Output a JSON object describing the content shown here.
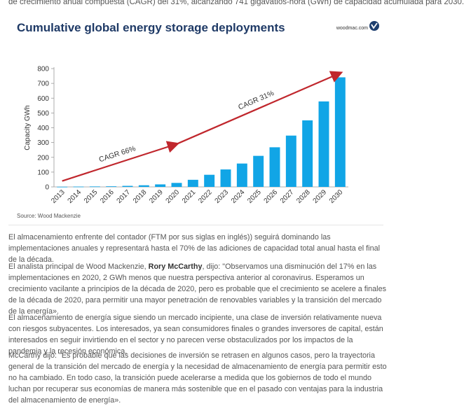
{
  "article": {
    "top_clip": "de crecimiento anual compuesta (CAGR) del 31%, alcanzando 741 gigavatios-hora (GWh) de capacidad acumulada para 2030.",
    "p1": "El almacenamiento enfrente del contador (FTM por sus siglas en inglés)) seguirá dominando las implementaciones anuales y representará hasta el 70% de las adiciones de capacidad total anual hasta el final de la década.",
    "p2_prefix": "El analista principal de Wood Mackenzie, ",
    "p2_name": "Rory McCarthy",
    "p2_rest": ", dijo: \"Observamos una disminución del 17% en las implementaciones en 2020, 2 GWh menos que nuestra perspectiva anterior al coronavirus. Esperamos un crecimiento vacilante a principios de la década de 2020, pero es probable que el crecimiento se acelere a finales de la década de 2020, para permitir una mayor penetración de renovables variables y la transición del mercado de la energía».",
    "p3": "El almacenamiento de energía sigue siendo un mercado incipiente, una clase de inversión relativamente nueva con riesgos subyacentes. Los interesados, ya sean consumidores finales o grandes inversores de capital, están interesados en seguir invirtiendo en el sector y no parecen verse obstaculizados por los impactos de la pandemia y la recesión económica.",
    "p4": "McCarthy dijo: \"Es probable que las decisiones de inversión se retrasen en algunos casos, pero la trayectoria general de la transición del mercado de energía y la necesidad de almacenamiento de energía para permitir esto no ha cambiado. En todo caso, la transición puede acelerarse a medida que los gobiernos de todo el mundo luchan por recuperar sus economías de manera más sostenible que en el pasado con ventajas para la industria del almacenamiento de energía»."
  },
  "figure": {
    "title": "Cumulative global energy storage deployments",
    "brand": "woodmac.com",
    "source": "Source: Wood Mackenzie"
  },
  "chart_data": {
    "type": "bar",
    "title": "Cumulative global energy storage deployments",
    "xlabel": "",
    "ylabel": "Capacity GWh",
    "ylim": [
      0,
      800
    ],
    "yticks": [
      0,
      100,
      200,
      300,
      400,
      500,
      600,
      700,
      800
    ],
    "categories": [
      "2013",
      "2014",
      "2015",
      "2016",
      "2017",
      "2018",
      "2019",
      "2020",
      "2021",
      "2022",
      "2023",
      "2024",
      "2025",
      "2026",
      "2027",
      "2028",
      "2029",
      "2030"
    ],
    "values": [
      1,
      2,
      3,
      4,
      7,
      11,
      17,
      27,
      48,
      82,
      118,
      158,
      210,
      268,
      347,
      450,
      578,
      741
    ],
    "bar_color": "#11a5e6",
    "arrow_color": "#c0272d",
    "grid": false,
    "annotations": [
      {
        "text": "CAGR 66%",
        "from": [
          2013,
          40
        ],
        "to": [
          2020,
          290
        ]
      },
      {
        "text": "CAGR 31%",
        "from": [
          2020,
          290
        ],
        "to": [
          2030,
          770
        ]
      }
    ]
  }
}
